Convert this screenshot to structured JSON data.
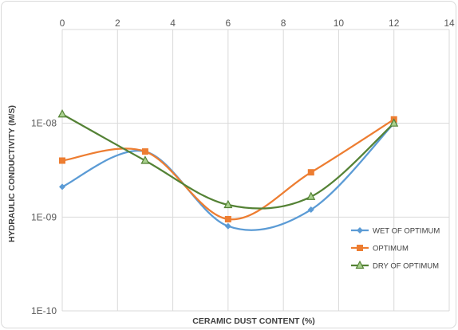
{
  "chart_data": {
    "type": "line",
    "xlabel": "CERAMIC DUST CONTENT (%)",
    "ylabel": "HYDRAULIC  CONDUCTIVITY (M/S)",
    "xlim": [
      0,
      14
    ],
    "ylim": [
      1e-10,
      1e-07
    ],
    "y_scale": "log",
    "x_axis_position": "top",
    "x_ticks": [
      "0",
      "2",
      "4",
      "6",
      "8",
      "10",
      "12",
      "14"
    ],
    "y_ticks": [
      "1E-10",
      "1E-09",
      "1E-08"
    ],
    "grid": true,
    "legend_position": "bottom-right",
    "series": [
      {
        "name": "WET OF OPTIMUM",
        "color": "#5B9BD5",
        "marker": "diamond",
        "x": [
          0,
          3,
          6,
          9,
          12
        ],
        "y": [
          2.1e-09,
          5e-09,
          8e-10,
          1.2e-09,
          1e-08
        ]
      },
      {
        "name": "OPTIMUM",
        "color": "#ED7D31",
        "marker": "square",
        "x": [
          0,
          3,
          6,
          9,
          12
        ],
        "y": [
          4e-09,
          5e-09,
          9.5e-10,
          3e-09,
          1.1e-08
        ]
      },
      {
        "name": "DRY OF OPTIMUM",
        "color": "#548235",
        "marker": "triangle",
        "x": [
          0,
          3,
          6,
          9,
          12
        ],
        "y": [
          1.25e-08,
          4e-09,
          1.35e-09,
          1.65e-09,
          1e-08
        ]
      }
    ]
  }
}
